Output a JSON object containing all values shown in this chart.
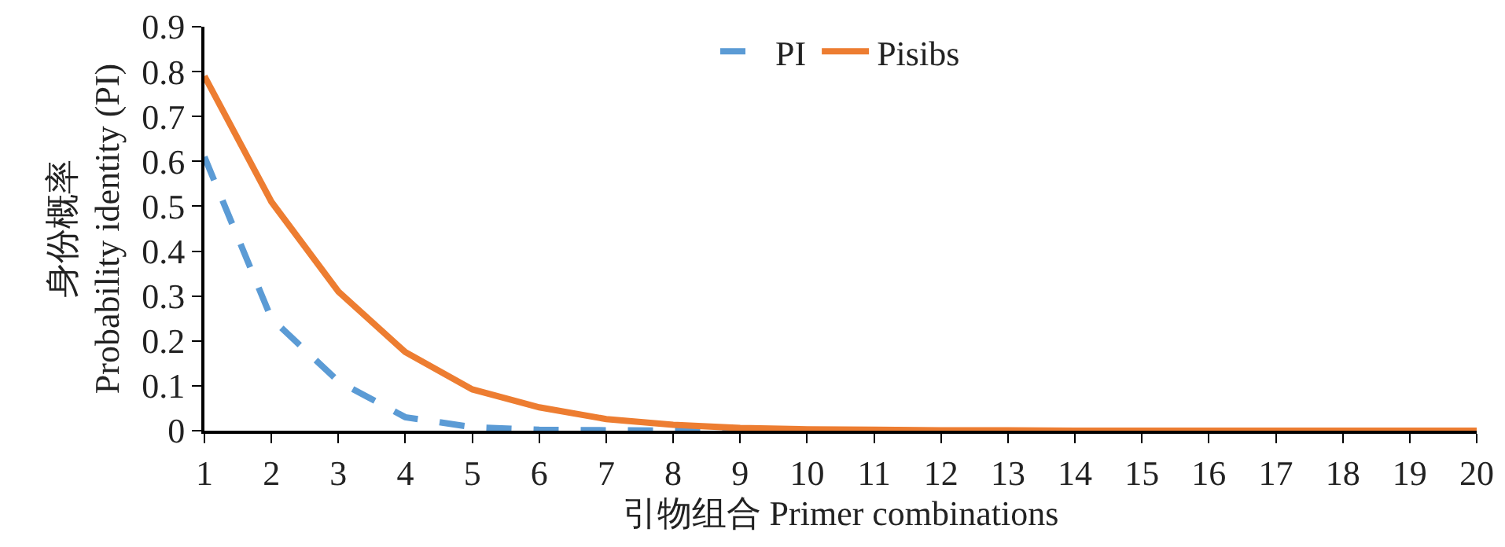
{
  "chart_data": {
    "type": "line",
    "xlabel": "引物组合 Primer combinations",
    "ylabel": "身份概率\nProbability identity (PI)",
    "x": [
      1,
      2,
      3,
      4,
      5,
      6,
      7,
      8,
      9,
      10,
      11,
      12,
      13,
      14,
      15,
      16,
      17,
      18,
      19,
      20
    ],
    "series": [
      {
        "name": "PI",
        "color": "#5b9bd5",
        "line_style": "dashed",
        "values": [
          0.61,
          0.25,
          0.11,
          0.03,
          0.008,
          0.002,
          0.001,
          0,
          0,
          null,
          null,
          null,
          null,
          null,
          null,
          null,
          null,
          null,
          null,
          null
        ]
      },
      {
        "name": "Pisibs",
        "color": "#ed7d31",
        "line_style": "solid",
        "values": [
          0.79,
          0.51,
          0.31,
          0.175,
          0.092,
          0.052,
          0.026,
          0.013,
          0.006,
          0.003,
          0.002,
          0.001,
          0.001,
          0,
          0,
          0,
          0,
          0,
          0,
          0
        ]
      }
    ],
    "xlim": [
      1,
      20
    ],
    "xticks": [
      1,
      2,
      3,
      4,
      5,
      6,
      7,
      8,
      9,
      10,
      11,
      12,
      13,
      14,
      15,
      16,
      17,
      18,
      19,
      20
    ],
    "ylim": [
      0,
      0.9
    ],
    "yticks": [
      0,
      0.1,
      0.2,
      0.3,
      0.4,
      0.5,
      0.6,
      0.7,
      0.8,
      0.9
    ],
    "grid": false,
    "legend": "top",
    "marker": "none"
  }
}
